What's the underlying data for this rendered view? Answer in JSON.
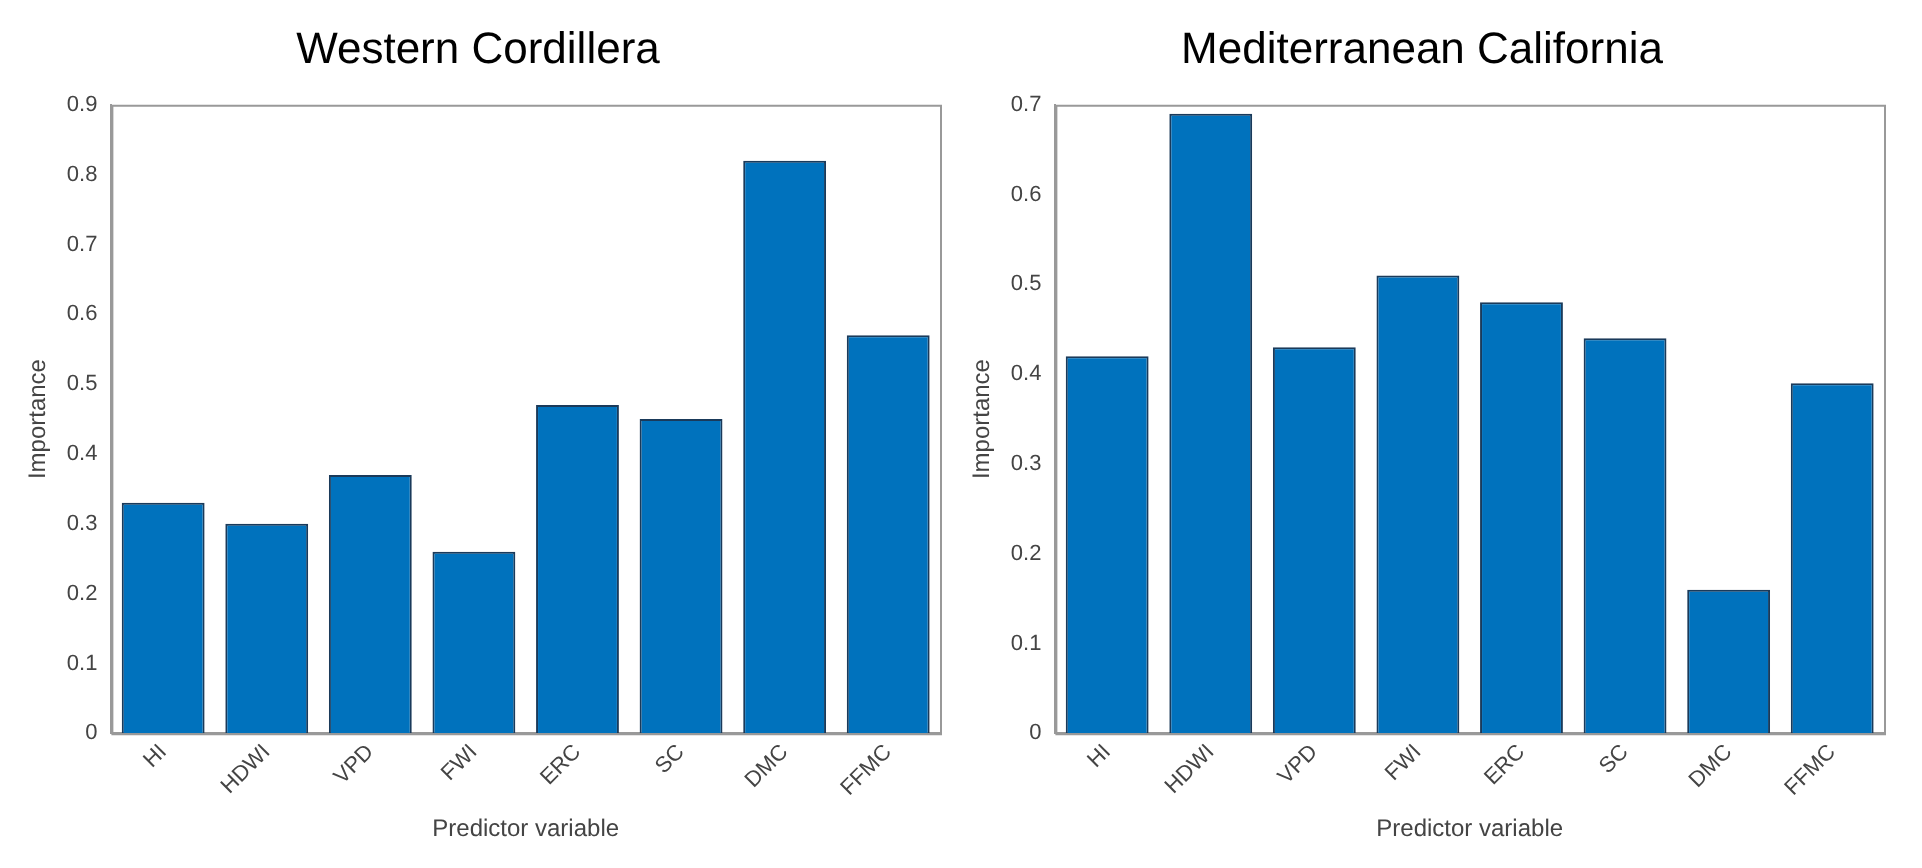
{
  "chart_data": [
    {
      "type": "bar",
      "title": "Western Cordillera",
      "xlabel": "Predictor variable",
      "ylabel": "Importance",
      "categories": [
        "HI",
        "HDWI",
        "VPD",
        "FWI",
        "ERC",
        "SC",
        "DMC",
        "FFMC"
      ],
      "values": [
        0.33,
        0.3,
        0.37,
        0.26,
        0.47,
        0.45,
        0.82,
        0.57
      ],
      "color": "#0072bd",
      "ylim": [
        0,
        0.9
      ],
      "yticks": [
        0,
        0.1,
        0.2,
        0.3,
        0.4,
        0.5,
        0.6,
        0.7,
        0.8,
        0.9
      ],
      "grid": false,
      "legend": false
    },
    {
      "type": "bar",
      "title": "Mediterranean California",
      "xlabel": "Predictor variable",
      "ylabel": "Importance",
      "categories": [
        "HI",
        "HDWI",
        "VPD",
        "FWI",
        "ERC",
        "SC",
        "DMC",
        "FFMC"
      ],
      "values": [
        0.42,
        0.69,
        0.43,
        0.51,
        0.48,
        0.44,
        0.16,
        0.39
      ],
      "color": "#0072bd",
      "ylim": [
        0,
        0.7
      ],
      "yticks": [
        0,
        0.1,
        0.2,
        0.3,
        0.4,
        0.5,
        0.6,
        0.7
      ],
      "grid": false,
      "legend": false
    }
  ]
}
